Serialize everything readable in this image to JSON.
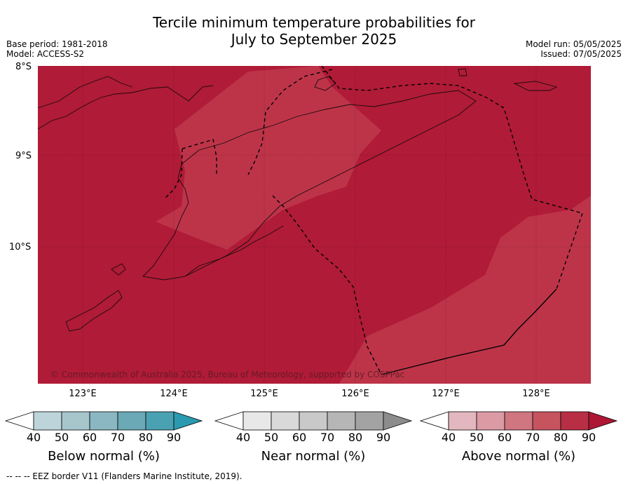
{
  "title_line1": "Tercile minimum temperature probabilities for",
  "title_line2": "July to September 2025",
  "base_period": "Base period: 1981-2018",
  "model": "Model: ACCESS-S2",
  "model_run": "Model run: 05/05/2025",
  "issued": "Issued: 07/05/2025",
  "lat_labels": [
    "8°S",
    "9°S",
    "10°S"
  ],
  "lon_labels": [
    "123°E",
    "124°E",
    "125°E",
    "126°E",
    "127°E",
    "128°E"
  ],
  "copyright": "© Commonwealth of Australia 2025, Bureau of Meteorology, supported by COSPPac",
  "colorbars": [
    {
      "label": "Below normal (%)",
      "ticks": [
        "40",
        "50",
        "60",
        "70",
        "80",
        "90"
      ],
      "colors": [
        "#ffffff",
        "#bdd4da",
        "#a6c6cc",
        "#8ab7c1",
        "#6aa9b5",
        "#4aa1b1",
        "#2a9ab0"
      ]
    },
    {
      "label": "Near normal (%)",
      "ticks": [
        "40",
        "50",
        "60",
        "70",
        "80",
        "90"
      ],
      "colors": [
        "#ffffff",
        "#e8e8e8",
        "#d9d9d9",
        "#c9c9c9",
        "#b6b6b6",
        "#a3a3a3",
        "#8c8c8c"
      ]
    },
    {
      "label": "Above normal (%)",
      "ticks": [
        "40",
        "50",
        "60",
        "70",
        "80",
        "90"
      ],
      "colors": [
        "#ffffff",
        "#e3b7bf",
        "#db9aa4",
        "#cf7680",
        "#c6545f",
        "#b82e44",
        "#ad1735"
      ]
    }
  ],
  "legend": "--  --  -- EEZ border V11 (Flanders Marine Institute, 2019).",
  "map_colors": {
    "above_90": "#b01b37",
    "above_80": "#bd3449"
  }
}
